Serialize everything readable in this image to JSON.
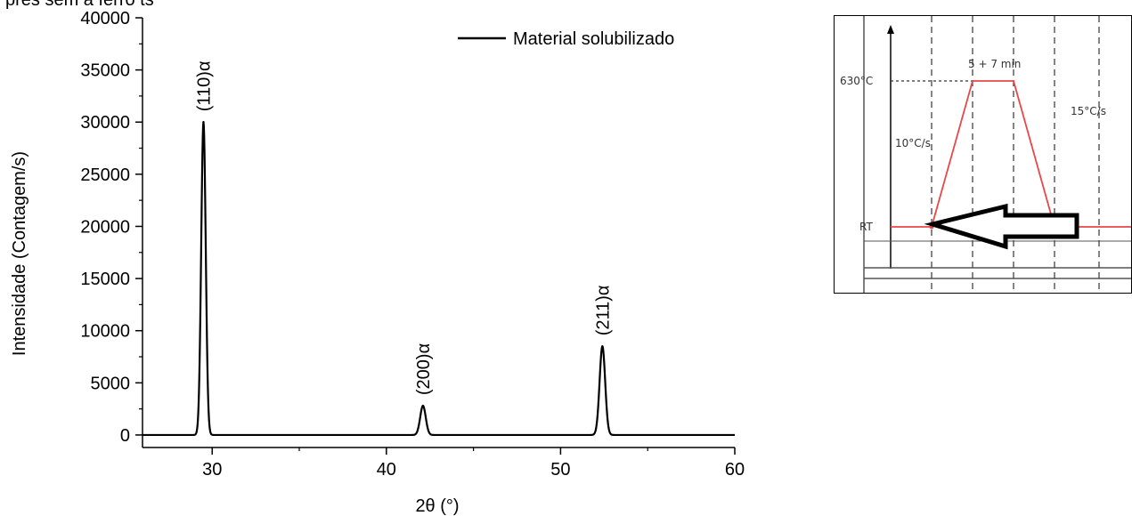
{
  "header_fragment": "pres sem a ferro ts",
  "chart_data": {
    "type": "line",
    "xlabel": "2θ (°)",
    "ylabel": "Intensidade (Contagem/s)",
    "xlim": [
      26,
      60
    ],
    "ylim": [
      -1200,
      40000
    ],
    "x_ticks": [
      30,
      40,
      50,
      60
    ],
    "y_ticks": [
      0,
      5000,
      10000,
      15000,
      20000,
      25000,
      30000,
      35000,
      40000
    ],
    "legend": "top-right",
    "grid": false,
    "series": [
      {
        "name": "Material solubilizado",
        "color": "#000000",
        "baseline": 0,
        "peaks": [
          {
            "x": 29.5,
            "y": 30000,
            "width": 0.13,
            "label": "(110)α"
          },
          {
            "x": 42.1,
            "y": 2800,
            "width": 0.16,
            "label": "(200)α"
          },
          {
            "x": 52.4,
            "y": 8500,
            "width": 0.16,
            "label": "(211)α"
          }
        ]
      }
    ]
  },
  "inset": {
    "temperature_label": "630°C",
    "room_temp_label": "RT",
    "hold_label": "5 + 7 min",
    "heating_rate_label": "10°C/s",
    "cooling_rate_label": "15°C/s",
    "profile_color": "#e8474a"
  }
}
